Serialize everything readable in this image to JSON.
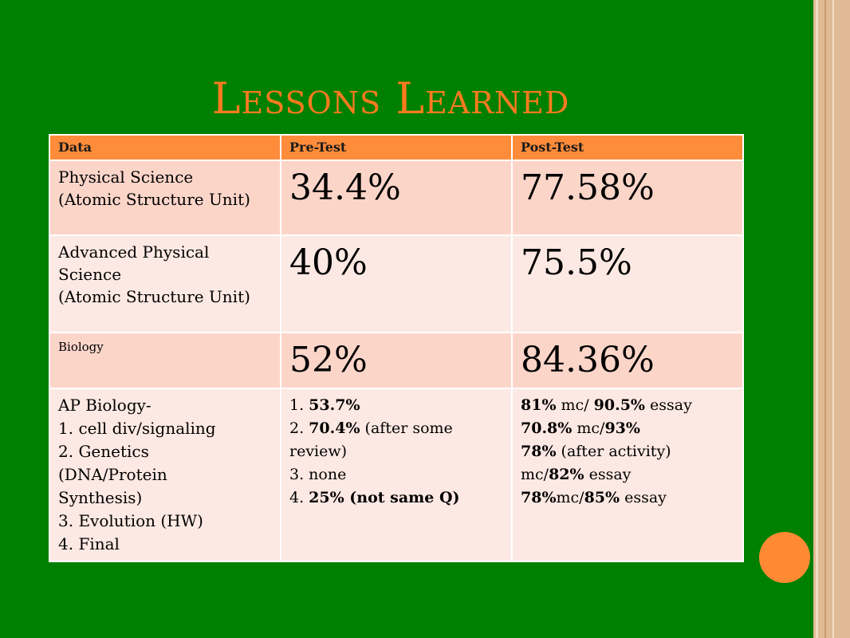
{
  "slide": {
    "title": "Lessons Learned"
  },
  "table": {
    "headers": [
      "Data",
      "Pre-Test",
      "Post-Test"
    ],
    "rows": [
      {
        "label_lines": [
          "Physical Science",
          "(Atomic Structure Unit)"
        ],
        "pre": "34.4%",
        "post": "77.58%"
      },
      {
        "label_lines": [
          "Advanced Physical",
          "Science",
          "(Atomic Structure Unit)"
        ],
        "pre": "40%",
        "post": "75.5%"
      },
      {
        "label_lines": [
          "Biology"
        ],
        "pre": "52%",
        "post": "84.36%"
      }
    ],
    "ap": {
      "label_lines": [
        "AP Biology-",
        "1. cell div/signaling",
        "2. Genetics",
        "(DNA/Protein",
        "Synthesis)",
        "3. Evolution (HW)",
        "4. Final"
      ],
      "pre": {
        "l1a": "1. ",
        "l1b": "53.7%",
        "l2a": "2. ",
        "l2b": "70.4%",
        "l2c": " (after some",
        "l3": "review)",
        "l4": "3. none",
        "l5a": "4. ",
        "l5b": "25% (not same Q)"
      },
      "post": {
        "l1a": "81%",
        "l1b": " mc/ ",
        "l1c": "90.5%",
        "l1d": " essay",
        "l2a": "70.8%",
        "l2b": " mc/",
        "l2c": "93%",
        "l3a": "78%",
        "l3b": " (after activity)",
        "l4a": "mc/",
        "l4b": "82%",
        "l4c": " essay",
        "l5a": "78%",
        "l5b": "mc/",
        "l5c": "85%",
        "l5d": " essay"
      }
    }
  },
  "colors": {
    "background": "#008000",
    "title": "#ff7a1f",
    "header": "#ff8c3a",
    "row_dark": "#fcd5c9",
    "row_light": "#fde9e3",
    "frame": "#e0ba94",
    "circle": "#ff8a33"
  }
}
